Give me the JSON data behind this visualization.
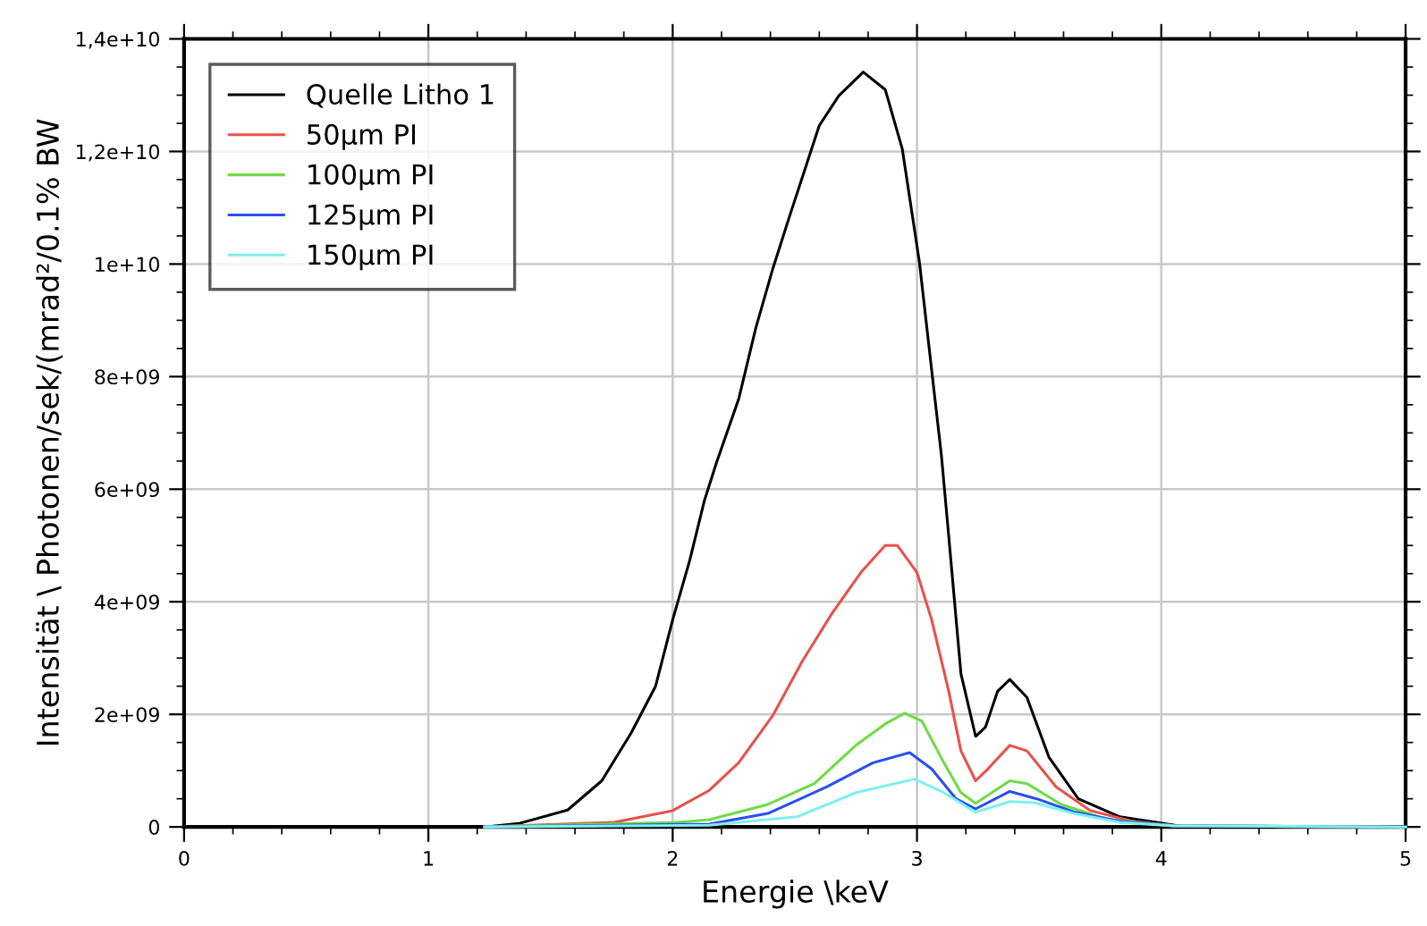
{
  "chart_data": {
    "type": "line",
    "xlabel": "Energie \\keV",
    "ylabel": "Intensität \\ Photonen/sek/(mrad²/0.1% BW",
    "xlim": [
      0,
      5
    ],
    "xticks": [
      0,
      1,
      2,
      3,
      4,
      5
    ],
    "ylim": [
      0,
      14000000000
    ],
    "yticks": [
      {
        "value": 0,
        "label": "0"
      },
      {
        "value": 2000000000,
        "label": "2e+09"
      },
      {
        "value": 4000000000,
        "label": "4e+09"
      },
      {
        "value": 6000000000,
        "label": "6e+09"
      },
      {
        "value": 8000000000,
        "label": "8e+09"
      },
      {
        "value": 10000000000,
        "label": "1e+10"
      },
      {
        "value": 12000000000,
        "label": "1,2e+10"
      },
      {
        "value": 14000000000,
        "label": "1,4e+10"
      }
    ],
    "grid": true,
    "legend": "top left",
    "series": [
      {
        "name": "Quelle Litho 1",
        "color": "#000000",
        "x": [
          1.23,
          1.37,
          1.57,
          1.71,
          1.83,
          1.93,
          2.0,
          2.07,
          2.13,
          2.18,
          2.27,
          2.34,
          2.41,
          2.48,
          2.6,
          2.68,
          2.78,
          2.87,
          2.94,
          3.01,
          3.06,
          3.1,
          3.13,
          3.18,
          3.24,
          3.28,
          3.33,
          3.38,
          3.45,
          3.54,
          3.66,
          3.83,
          3.98,
          4.1,
          5.0
        ],
        "values": [
          0,
          60000000,
          300000000,
          820000000,
          1670000000,
          2500000000,
          3680000000,
          4740000000,
          5800000000,
          6480000000,
          7600000000,
          8860000000,
          9920000000,
          10870000000,
          12460000000,
          12990000000,
          13410000000,
          13100000000,
          12040000000,
          10030000000,
          8120000000,
          6600000000,
          5160000000,
          2720000000,
          1610000000,
          1770000000,
          2410000000,
          2620000000,
          2300000000,
          1240000000,
          500000000,
          180000000,
          80000000,
          0,
          0
        ]
      },
      {
        "name": "50µm PI",
        "color": "#e8514a",
        "x": [
          1.23,
          1.76,
          2.0,
          2.15,
          2.27,
          2.41,
          2.53,
          2.65,
          2.77,
          2.87,
          2.92,
          3.0,
          3.06,
          3.13,
          3.18,
          3.24,
          3.29,
          3.38,
          3.45,
          3.57,
          3.71,
          3.88,
          4.05,
          5.0
        ],
        "values": [
          0,
          80000000,
          290000000,
          650000000,
          1140000000,
          1980000000,
          2940000000,
          3780000000,
          4520000000,
          5000000000,
          5000000000,
          4520000000,
          3680000000,
          2410000000,
          1350000000,
          820000000,
          1030000000,
          1450000000,
          1350000000,
          710000000,
          290000000,
          100000000,
          20000000,
          0
        ]
      },
      {
        "name": "100µm PI",
        "color": "#6fdc45",
        "x": [
          1.23,
          2.02,
          2.15,
          2.39,
          2.58,
          2.75,
          2.87,
          2.95,
          3.02,
          3.11,
          3.18,
          3.24,
          3.38,
          3.45,
          3.59,
          3.78,
          4.05,
          5.0
        ],
        "values": [
          0,
          80000000,
          130000000,
          400000000,
          770000000,
          1450000000,
          1830000000,
          2020000000,
          1880000000,
          1140000000,
          610000000,
          420000000,
          820000000,
          770000000,
          400000000,
          130000000,
          20000000,
          0
        ]
      },
      {
        "name": "125µm PI",
        "color": "#2a4ff0",
        "x": [
          1.23,
          2.15,
          2.39,
          2.63,
          2.82,
          2.97,
          3.06,
          3.16,
          3.24,
          3.38,
          3.49,
          3.64,
          3.83,
          4.05,
          5.0
        ],
        "values": [
          0,
          50000000,
          240000000,
          710000000,
          1140000000,
          1320000000,
          1030000000,
          500000000,
          320000000,
          630000000,
          500000000,
          270000000,
          100000000,
          20000000,
          0
        ]
      },
      {
        "name": "150µm PI",
        "color": "#7ef0f0",
        "x": [
          1.23,
          2.15,
          2.51,
          2.75,
          2.99,
          3.11,
          3.24,
          3.38,
          3.48,
          3.64,
          3.83,
          4.05,
          5.0
        ],
        "values": [
          0,
          30000000,
          180000000,
          610000000,
          850000000,
          610000000,
          260000000,
          450000000,
          430000000,
          240000000,
          80000000,
          20000000,
          0
        ]
      }
    ]
  }
}
